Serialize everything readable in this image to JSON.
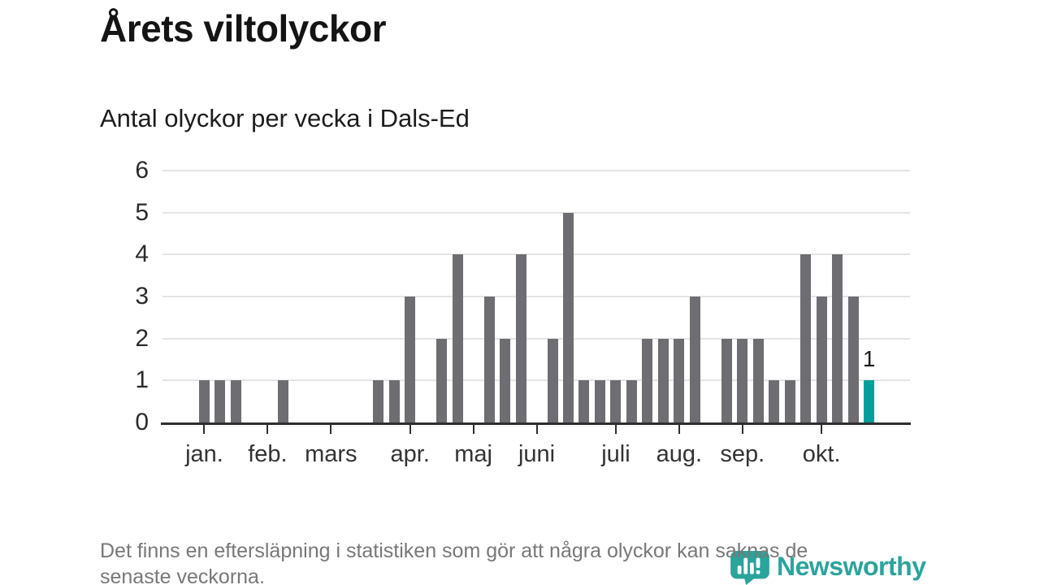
{
  "header": {
    "title": "Årets viltolyckor",
    "subtitle": "Antal olyckor per vecka i Dals-Ed"
  },
  "chart_data": {
    "type": "bar",
    "title": "Årets viltolyckor",
    "subtitle": "Antal olyckor per vecka i Dals-Ed",
    "x_unit": "vecka",
    "ylim": [
      0,
      6
    ],
    "yticks": [
      0,
      1,
      2,
      3,
      4,
      5,
      6
    ],
    "grid": "horizontal",
    "weeks": [
      0,
      0,
      1,
      1,
      1,
      0,
      0,
      1,
      0,
      0,
      0,
      0,
      0,
      1,
      1,
      3,
      0,
      2,
      4,
      0,
      3,
      2,
      4,
      0,
      2,
      5,
      1,
      1,
      1,
      1,
      2,
      2,
      2,
      3,
      0,
      2,
      2,
      2,
      1,
      1,
      4,
      3,
      4,
      3,
      1,
      0,
      0
    ],
    "month_ticks": [
      {
        "label": "jan.",
        "slot": 2
      },
      {
        "label": "feb.",
        "slot": 6
      },
      {
        "label": "mars",
        "slot": 10
      },
      {
        "label": "apr.",
        "slot": 15
      },
      {
        "label": "maj",
        "slot": 19
      },
      {
        "label": "juni",
        "slot": 23
      },
      {
        "label": "juli",
        "slot": 28
      },
      {
        "label": "aug.",
        "slot": 32
      },
      {
        "label": "sep.",
        "slot": 36
      },
      {
        "label": "okt.",
        "slot": 41
      }
    ],
    "highlight": {
      "slot": 44,
      "value": 1,
      "label": "1"
    },
    "colors": {
      "bar": "#6d6d72",
      "highlight": "#00a09a",
      "axis": "#2e2e2e",
      "grid": "#e4e4e4"
    }
  },
  "footer": {
    "note": "Det finns en eftersläpning i statistiken som gör att några olyckor kan saknas de senaste veckorna.",
    "note_lines": [
      "Det finns en eftersläpning i statistiken som gör att några olyckor kan saknas de",
      "senaste veckorna."
    ]
  },
  "branding": {
    "logo_text": "Newsworthy",
    "logo_color": "#2ba49b"
  }
}
